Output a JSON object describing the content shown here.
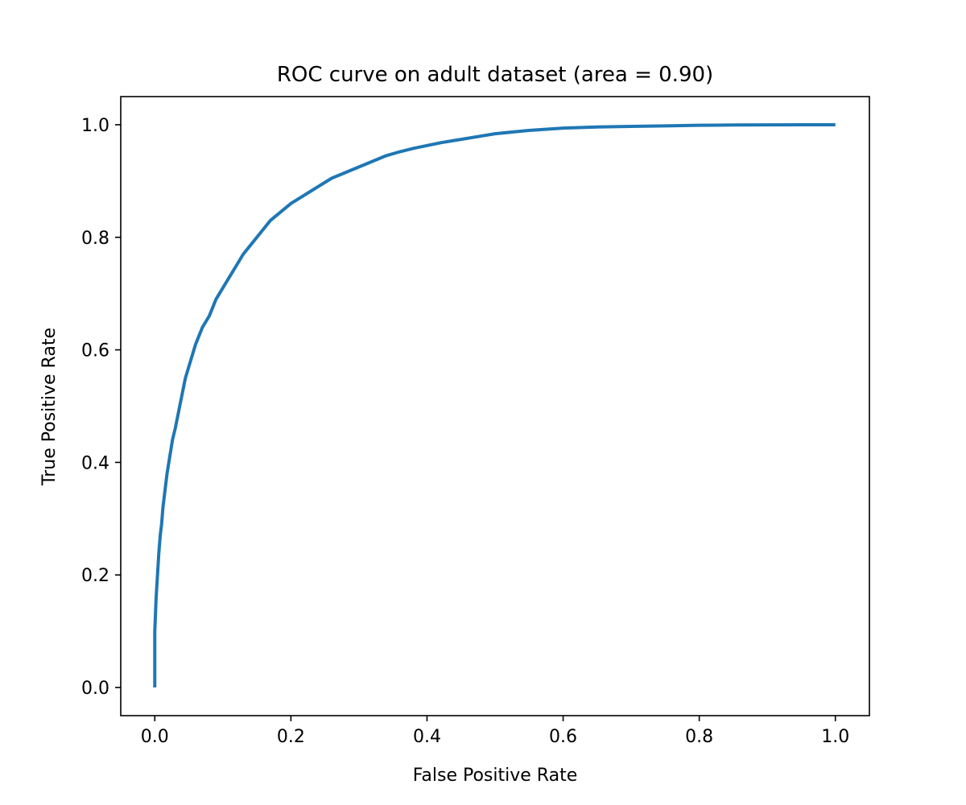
{
  "chart_data": {
    "type": "line",
    "title": "ROC curve on adult dataset (area = 0.90)",
    "xlabel": "False Positive Rate",
    "ylabel": "True Positive Rate",
    "xlim": [
      -0.05,
      1.05
    ],
    "ylim": [
      -0.05,
      1.05
    ],
    "xticks": [
      0.0,
      0.2,
      0.4,
      0.6,
      0.8,
      1.0
    ],
    "yticks": [
      0.0,
      0.2,
      0.4,
      0.6,
      0.8,
      1.0
    ],
    "xtick_labels": [
      "0.0",
      "0.2",
      "0.4",
      "0.6",
      "0.8",
      "1.0"
    ],
    "ytick_labels": [
      "0.0",
      "0.2",
      "0.4",
      "0.6",
      "0.8",
      "1.0"
    ],
    "grid": false,
    "legend": "none",
    "series": [
      {
        "color": "#1f77b4",
        "x": [
          0.0,
          0.0,
          0.002,
          0.004,
          0.006,
          0.008,
          0.01,
          0.012,
          0.015,
          0.018,
          0.022,
          0.026,
          0.03,
          0.035,
          0.04,
          0.045,
          0.05,
          0.06,
          0.07,
          0.08,
          0.09,
          0.1,
          0.11,
          0.12,
          0.13,
          0.14,
          0.15,
          0.16,
          0.17,
          0.18,
          0.19,
          0.2,
          0.22,
          0.24,
          0.26,
          0.28,
          0.3,
          0.32,
          0.34,
          0.36,
          0.38,
          0.4,
          0.42,
          0.44,
          0.46,
          0.48,
          0.5,
          0.55,
          0.6,
          0.65,
          0.7,
          0.75,
          0.8,
          0.85,
          0.9,
          0.95,
          1.0
        ],
        "y": [
          0.0,
          0.1,
          0.16,
          0.2,
          0.24,
          0.27,
          0.29,
          0.32,
          0.35,
          0.38,
          0.41,
          0.44,
          0.46,
          0.49,
          0.52,
          0.55,
          0.57,
          0.61,
          0.64,
          0.66,
          0.69,
          0.71,
          0.73,
          0.75,
          0.77,
          0.785,
          0.8,
          0.815,
          0.83,
          0.84,
          0.85,
          0.86,
          0.875,
          0.89,
          0.905,
          0.915,
          0.925,
          0.935,
          0.945,
          0.952,
          0.958,
          0.963,
          0.968,
          0.972,
          0.976,
          0.98,
          0.984,
          0.99,
          0.994,
          0.996,
          0.997,
          0.998,
          0.999,
          0.9995,
          0.9998,
          0.9999,
          1.0
        ]
      }
    ]
  }
}
